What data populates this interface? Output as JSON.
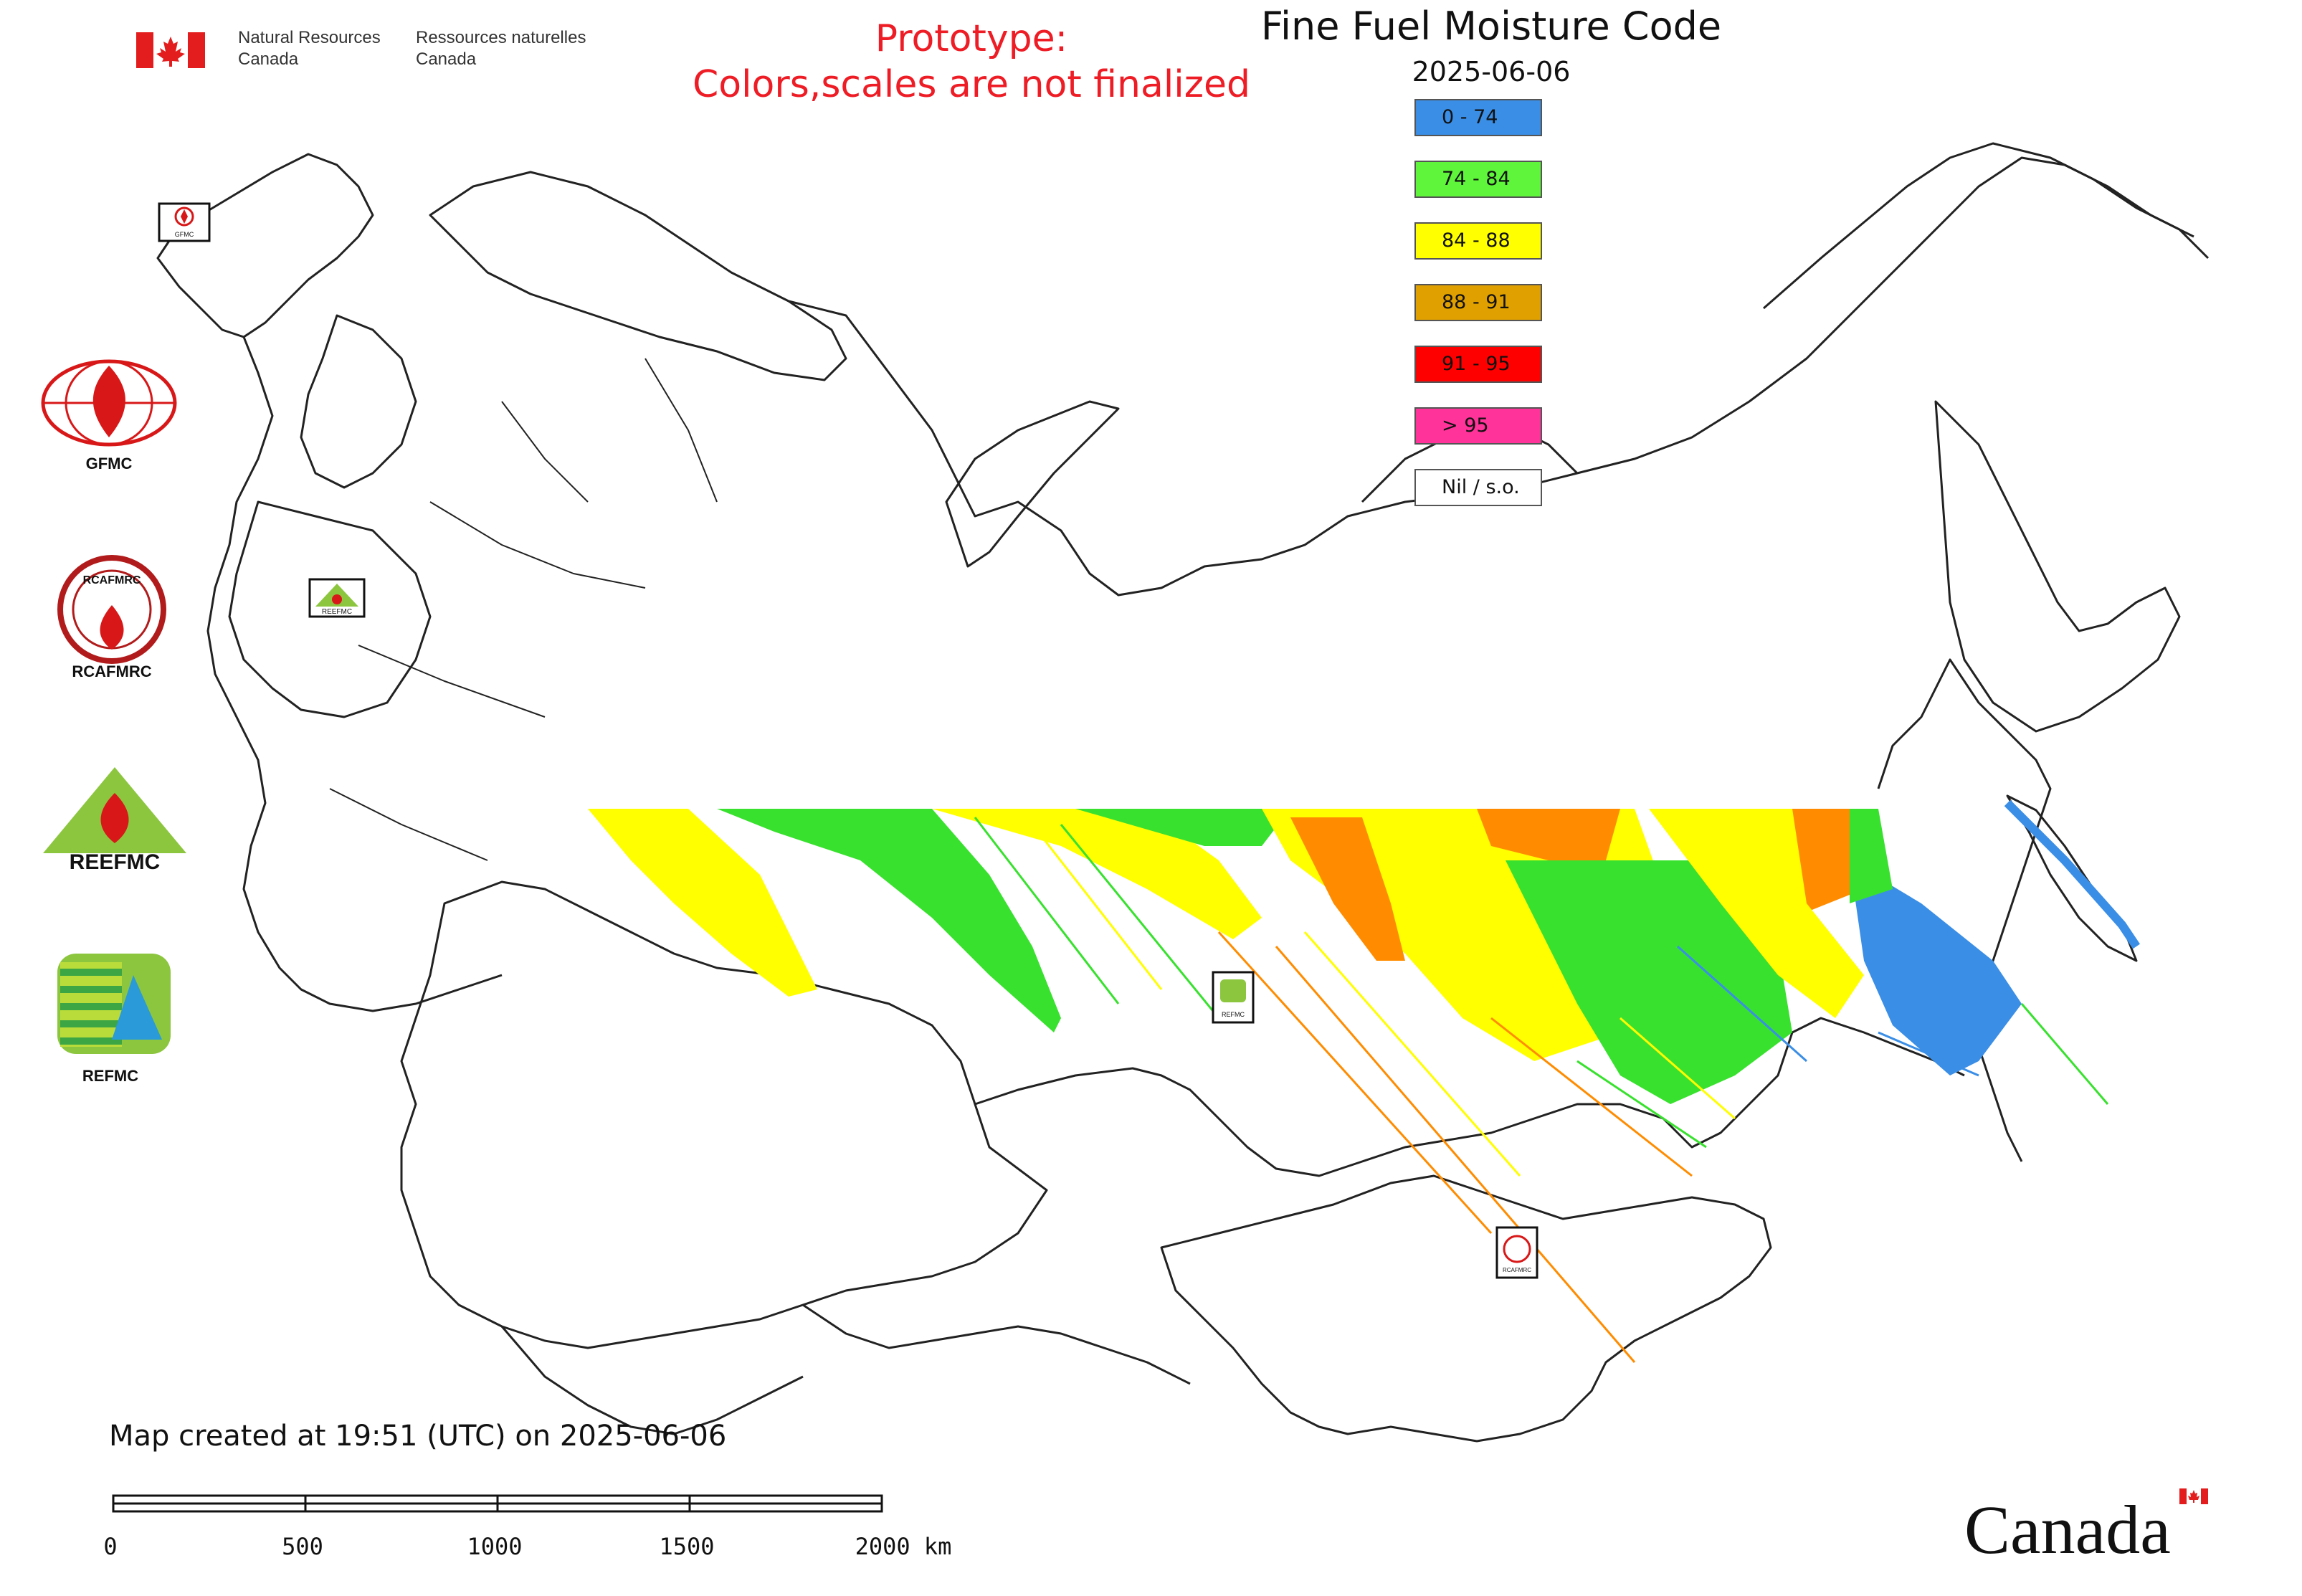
{
  "header": {
    "gov_en_line1": "Natural Resources",
    "gov_en_line2": "Canada",
    "gov_fr_line1": "Ressources naturelles",
    "gov_fr_line2": "Canada",
    "prototype_line1": "Prototype:",
    "prototype_line2": "Colors,scales are not finalized"
  },
  "map": {
    "title": "Fine Fuel Moisture Code",
    "date": "2025-06-06",
    "legend": [
      {
        "label": "0 - 74",
        "color": "#3a8ee6"
      },
      {
        "label": "74 - 84",
        "color": "#5ef53a"
      },
      {
        "label": "84 - 88",
        "color": "#ffff00"
      },
      {
        "label": "88 - 91",
        "color": "#e0a000"
      },
      {
        "label": "91 - 95",
        "color": "#ff0000"
      },
      {
        "label": "> 95",
        "color": "#ff3399"
      },
      {
        "label": "Nil / s.o.",
        "color": "#ffffff"
      }
    ],
    "marker_labels": {
      "gfmc": "GFMC",
      "reefmc": "REEFMC",
      "refmc": "REFMC",
      "rcafmrc": "RCAFMRC"
    }
  },
  "logos": [
    {
      "label": "GFMC"
    },
    {
      "label": "RCAFMRC"
    },
    {
      "label": "REEFMC"
    },
    {
      "label": "REFMC"
    }
  ],
  "footer": {
    "created": "Map created at 19:51 (UTC) on 2025-06-06",
    "scale_ticks": [
      "0",
      "500",
      "1000",
      "1500",
      "2000 km"
    ],
    "wordmark": "Canada"
  }
}
